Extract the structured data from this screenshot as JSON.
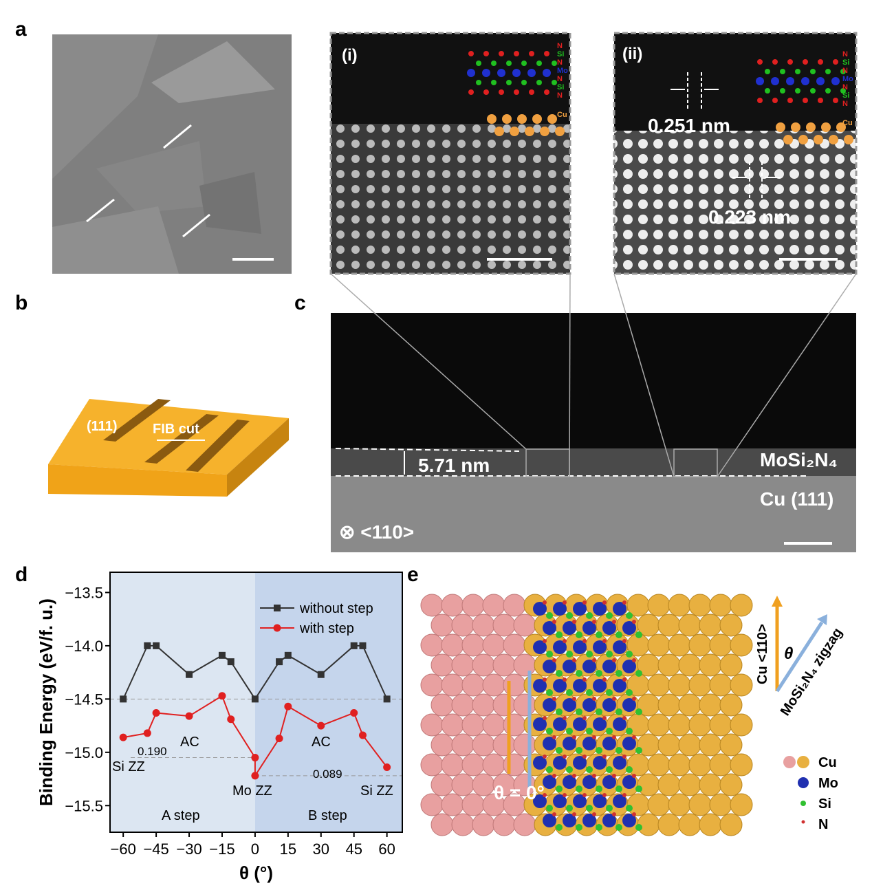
{
  "figure": {
    "panel_labels": [
      "a",
      "b",
      "c",
      "d",
      "e"
    ],
    "panel_a": {},
    "panel_i": {
      "label": "(i)",
      "atoms": [
        "N",
        "Si",
        "N",
        "Mo",
        "N",
        "Si",
        "N",
        "Cu"
      ]
    },
    "panel_ii": {
      "label": "(ii)",
      "atoms": [
        "N",
        "Si",
        "N",
        "Mo",
        "N",
        "Si",
        "N",
        "Cu"
      ],
      "spacing_top": "0.251 nm",
      "spacing_bottom": "0.223 nm"
    },
    "panel_b": {
      "facet": "(111)",
      "cut": "FIB cut"
    },
    "panel_c": {
      "thickness": "5.71 nm",
      "layer": "MoSi₂N₄",
      "substrate": "Cu (111)",
      "zone_axis": "⊗ <110>"
    },
    "panel_e": {
      "direction_cu": "Cu <110>",
      "direction_mos": "MoSi₂N₄ zigzag",
      "angle": "θ",
      "angle_value": "θ = 0°",
      "legend": [
        "Cu",
        "Mo",
        "Si",
        "N"
      ]
    }
  },
  "chart_data": {
    "type": "line",
    "x_label": "θ (°)",
    "y_label": "Binding Energy (eV/f. u.)",
    "xlim": [
      -66,
      67
    ],
    "ylim": [
      -15.75,
      -13.31
    ],
    "xticks": [
      {
        "value": -60,
        "label": "−60"
      },
      {
        "value": -45,
        "label": "−45"
      },
      {
        "value": -30,
        "label": "−30"
      },
      {
        "value": -15,
        "label": "−15"
      },
      0,
      15,
      30,
      45,
      60
    ],
    "yticks": [
      {
        "value": -13.5,
        "label": "−13.5"
      },
      {
        "value": -14.0,
        "label": "−14.0"
      },
      {
        "value": -14.5,
        "label": "−14.5"
      },
      {
        "value": -15.0,
        "label": "−15.0"
      },
      {
        "value": -15.5,
        "label": "−15.5"
      }
    ],
    "series": [
      {
        "name": "without step",
        "color": "#333333",
        "x": [
          -60,
          -49,
          -45,
          -30,
          -15,
          -11,
          0,
          11,
          15,
          30,
          45,
          49,
          60
        ],
        "values": [
          -14.5,
          -14.0,
          -14.0,
          -14.27,
          -14.09,
          -14.15,
          -14.5,
          -14.15,
          -14.09,
          -14.27,
          -14.0,
          -14.0,
          -14.5
        ]
      },
      {
        "name": "with step",
        "color": "#e02020",
        "x": [
          -60,
          -49,
          -45,
          -30,
          -15,
          -11,
          0,
          0,
          11,
          15,
          30,
          45,
          49,
          60
        ],
        "values": [
          -14.86,
          -14.82,
          -14.63,
          -14.66,
          -14.47,
          -14.69,
          -15.05,
          -15.22,
          -14.87,
          -14.57,
          -14.75,
          -14.63,
          -14.84,
          -15.14
        ]
      }
    ],
    "annotations": [
      "0.190",
      "Si ZZ",
      "AC",
      "Mo ZZ",
      "AC",
      "0.089",
      "Si ZZ",
      "A step",
      "B step"
    ]
  }
}
